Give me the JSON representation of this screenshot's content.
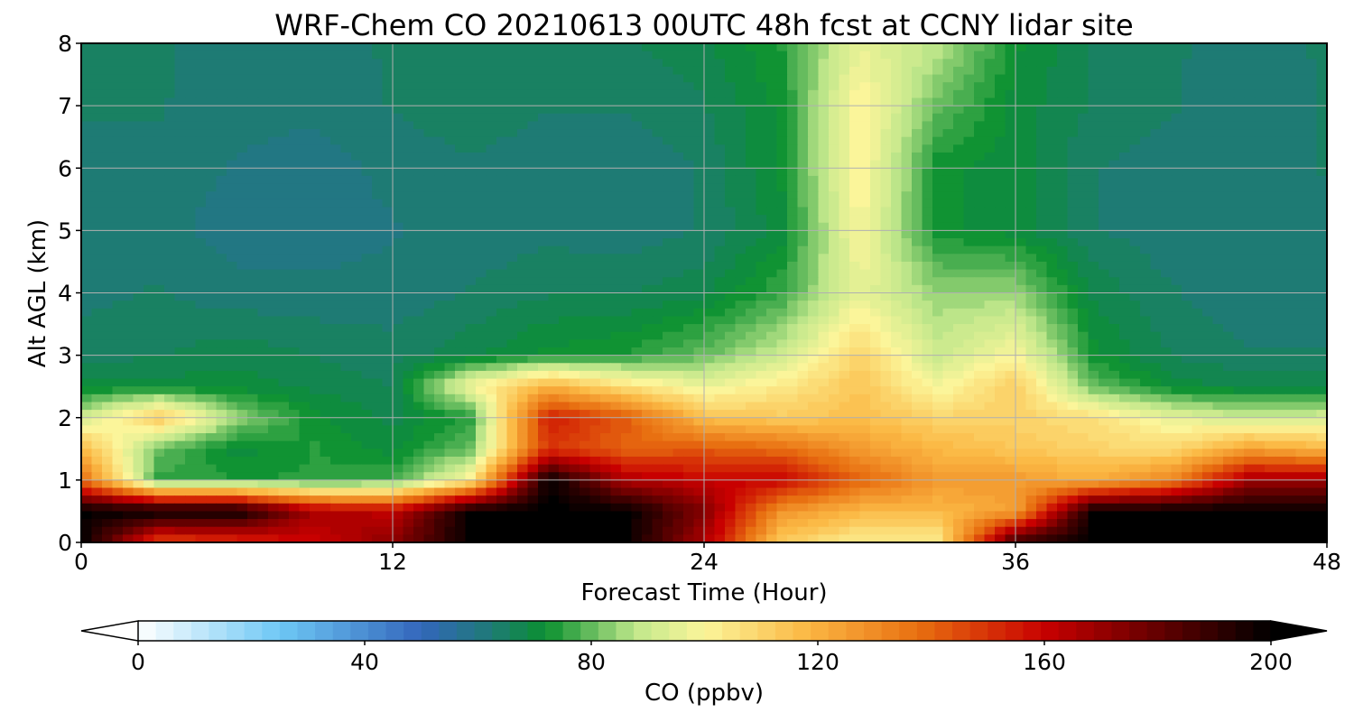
{
  "chart_data": {
    "type": "heatmap",
    "title": "WRF-Chem CO  20210613 00UTC 48h fcst at CCNY lidar site",
    "xlabel": "Forecast Time (Hour)",
    "ylabel": "Alt AGL (km)",
    "xlim": [
      0,
      48
    ],
    "ylim": [
      0,
      8
    ],
    "xticks": [
      "0",
      "12",
      "24",
      "36",
      "48"
    ],
    "yticks": [
      "0",
      "1",
      "2",
      "3",
      "4",
      "5",
      "6",
      "7",
      "8"
    ],
    "grid": true,
    "colorbar": {
      "label": "CO  (ppbv)",
      "range": [
        0,
        200
      ],
      "ticks": [
        "0",
        "40",
        "80",
        "120",
        "160",
        "200"
      ],
      "extend": "both",
      "stops": [
        {
          "v": 0,
          "c": "#ffffff"
        },
        {
          "v": 25,
          "c": "#6ec8f5"
        },
        {
          "v": 50,
          "c": "#3366bb"
        },
        {
          "v": 62,
          "c": "#1f7a78"
        },
        {
          "v": 72,
          "c": "#0a9030"
        },
        {
          "v": 88,
          "c": "#c2e88c"
        },
        {
          "v": 100,
          "c": "#fbf59a"
        },
        {
          "v": 118,
          "c": "#fbb844"
        },
        {
          "v": 138,
          "c": "#e86e10"
        },
        {
          "v": 160,
          "c": "#c80000"
        },
        {
          "v": 200,
          "c": "#000000"
        }
      ]
    },
    "series": [
      {
        "x": [
          0,
          3,
          6,
          9,
          12,
          15,
          18,
          21,
          24,
          27,
          30,
          33,
          36,
          39,
          42,
          45,
          48
        ]
      },
      {
        "altitude_km": [
          0,
          0.5,
          1,
          1.5,
          2,
          2.5,
          3,
          4,
          5,
          6,
          7,
          8
        ]
      }
    ],
    "z_rows_by_altitude": [
      [
        200,
        145,
        150,
        160,
        172,
        200,
        200,
        200,
        166,
        112,
        102,
        102,
        190,
        200,
        200,
        200,
        200
      ],
      [
        200,
        200,
        200,
        166,
        162,
        200,
        200,
        200,
        174,
        128,
        118,
        118,
        124,
        200,
        200,
        200,
        200
      ],
      [
        138,
        75,
        74,
        74,
        76,
        102,
        200,
        165,
        160,
        160,
        140,
        126,
        126,
        120,
        132,
        168,
        170
      ],
      [
        118,
        80,
        70,
        74,
        70,
        80,
        150,
        140,
        142,
        138,
        126,
        118,
        114,
        110,
        108,
        124,
        118
      ],
      [
        90,
        114,
        84,
        72,
        68,
        74,
        155,
        142,
        116,
        112,
        116,
        110,
        110,
        106,
        96,
        90,
        92
      ],
      [
        70,
        70,
        70,
        68,
        66,
        98,
        120,
        106,
        96,
        104,
        114,
        98,
        112,
        80,
        70,
        68,
        68
      ],
      [
        65,
        66,
        68,
        66,
        65,
        68,
        72,
        74,
        80,
        90,
        110,
        90,
        100,
        72,
        66,
        64,
        64
      ],
      [
        63,
        64,
        62,
        62,
        62,
        64,
        66,
        66,
        68,
        76,
        96,
        84,
        84,
        68,
        64,
        62,
        62
      ],
      [
        62,
        62,
        60,
        60,
        61,
        62,
        63,
        62,
        64,
        70,
        100,
        72,
        70,
        64,
        62,
        62,
        63
      ],
      [
        63,
        63,
        61,
        60,
        62,
        63,
        62,
        62,
        64,
        72,
        102,
        72,
        70,
        64,
        62,
        62,
        64
      ],
      [
        64,
        64,
        62,
        62,
        64,
        66,
        64,
        64,
        66,
        72,
        102,
        80,
        70,
        66,
        64,
        62,
        64
      ],
      [
        64,
        64,
        63,
        63,
        64,
        66,
        66,
        66,
        68,
        74,
        96,
        88,
        72,
        66,
        64,
        63,
        64
      ]
    ]
  }
}
